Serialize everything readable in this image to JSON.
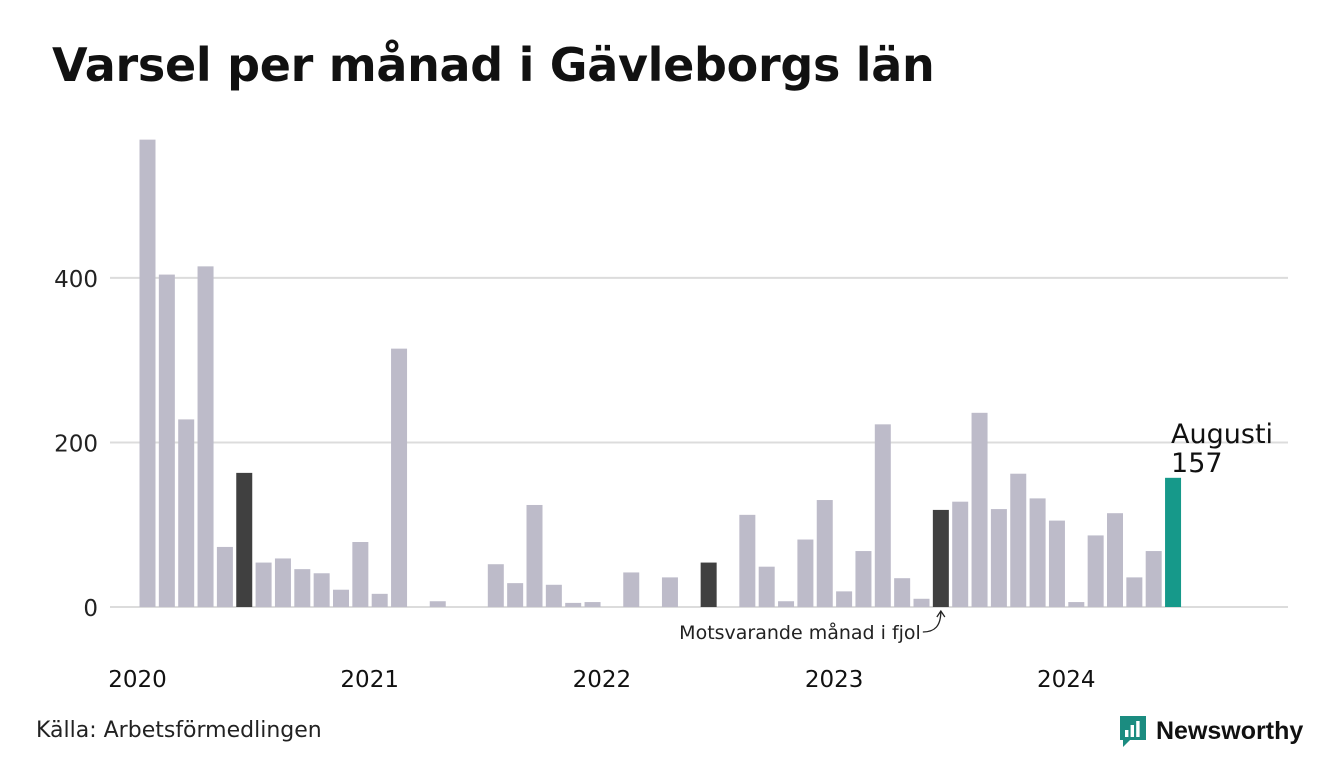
{
  "colors": {
    "bar": "#bdbbc9",
    "bar_previous_year": "#404040",
    "bar_current": "#16998a",
    "grid": "#dcdcdc",
    "brand": "#1b8c80"
  },
  "chart_data": {
    "type": "bar",
    "title": "Varsel per månad i Gävleborgs län",
    "xlabel": "",
    "ylabel": "",
    "ylim": [
      0,
      570
    ],
    "y_ticks": [
      0,
      200,
      400
    ],
    "grid": true,
    "x_ticks": [
      {
        "label": "2020",
        "month_index": 0
      },
      {
        "label": "2021",
        "month_index": 12
      },
      {
        "label": "2022",
        "month_index": 24
      },
      {
        "label": "2023",
        "month_index": 36
      },
      {
        "label": "2024",
        "month_index": 48
      }
    ],
    "values": [
      568,
      404,
      228,
      414,
      73,
      163,
      54,
      59,
      46,
      41,
      21,
      79,
      16,
      314,
      0,
      7,
      0,
      0,
      52,
      29,
      124,
      27,
      5,
      6,
      0,
      42,
      0,
      36,
      0,
      54,
      0,
      112,
      49,
      7,
      82,
      130,
      19,
      68,
      222,
      35,
      10,
      118,
      128,
      236,
      119,
      162,
      132,
      105,
      6,
      87,
      114,
      36,
      68,
      157
    ],
    "highlight_previous_year": [
      5,
      29,
      41
    ],
    "highlight_current": 53,
    "annotation_current": {
      "month": "Augusti",
      "value": "157"
    },
    "annotation_previous": "Motsvarande månad i fjol"
  },
  "footer": {
    "source": "Källa: Arbetsförmedlingen",
    "brand": "Newsworthy"
  }
}
